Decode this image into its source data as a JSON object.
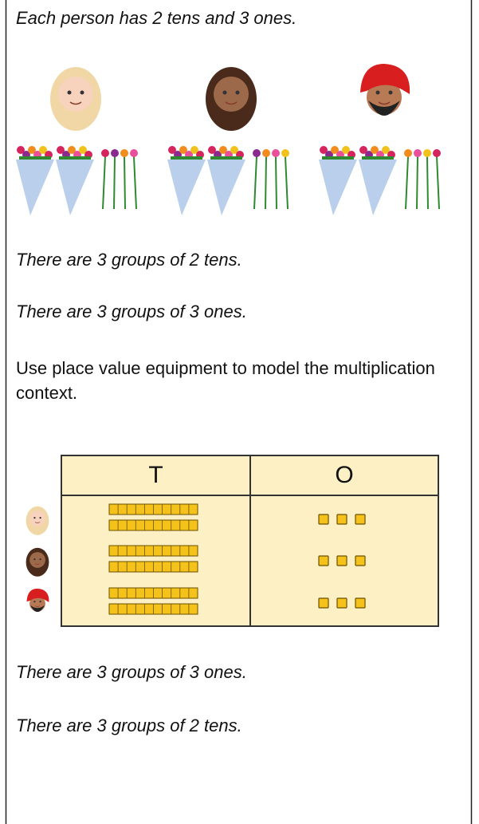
{
  "intro": "Each person has 2 tens and 3 ones.",
  "statements": [
    "There are 3 groups of 2 tens.",
    "There are 3 groups of 3 ones."
  ],
  "instruction": "Use place value equipment to model the multiplication context.",
  "table": {
    "headers": [
      "T",
      "O"
    ]
  },
  "conclusions": [
    "There are 3 groups of 3 ones.",
    "There are 3 groups of 2 tens."
  ]
}
